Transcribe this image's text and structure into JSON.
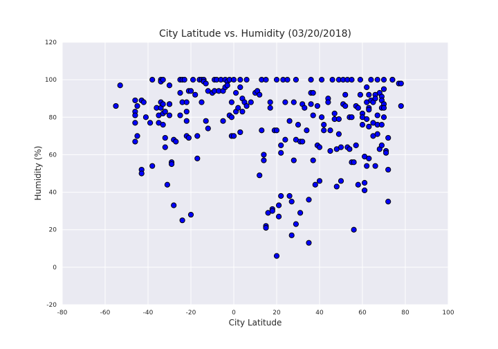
{
  "chart_data": {
    "type": "scatter",
    "title": "City Latitude vs. Humidity (03/20/2018)",
    "xlabel": "City Latitude",
    "ylabel": "Humidity (%)",
    "xlim": [
      -80,
      100
    ],
    "ylim": [
      -20,
      120
    ],
    "xticks": [
      -80,
      -60,
      -40,
      -20,
      0,
      20,
      40,
      60,
      80,
      100
    ],
    "yticks": [
      -20,
      0,
      20,
      40,
      60,
      80,
      100,
      120
    ],
    "grid": true,
    "colors": {
      "background": "#EAEAF2",
      "grid": "#FFFFFF",
      "marker_fill": "#0000FF",
      "marker_edge": "#000000"
    },
    "points": [
      [
        -55,
        86
      ],
      [
        -53,
        97
      ],
      [
        -46,
        89
      ],
      [
        -46,
        83
      ],
      [
        -46,
        81
      ],
      [
        -45,
        86
      ],
      [
        -46,
        77
      ],
      [
        -46,
        67
      ],
      [
        -45,
        70
      ],
      [
        -43,
        52
      ],
      [
        -43,
        50
      ],
      [
        -43,
        89
      ],
      [
        -42,
        88
      ],
      [
        -41,
        80
      ],
      [
        -39,
        77
      ],
      [
        -38,
        100
      ],
      [
        -38,
        54
      ],
      [
        -36,
        85
      ],
      [
        -35,
        81
      ],
      [
        -35,
        77
      ],
      [
        -34,
        100
      ],
      [
        -34,
        99
      ],
      [
        -34,
        88
      ],
      [
        -34,
        85
      ],
      [
        -33,
        100
      ],
      [
        -33,
        87
      ],
      [
        -33,
        82
      ],
      [
        -33,
        76
      ],
      [
        -32,
        83
      ],
      [
        -32,
        64
      ],
      [
        -32,
        69
      ],
      [
        -31,
        44
      ],
      [
        -30,
        97
      ],
      [
        -30,
        87
      ],
      [
        -30,
        87
      ],
      [
        -30,
        81
      ],
      [
        -29,
        56
      ],
      [
        -29,
        55
      ],
      [
        -28,
        33
      ],
      [
        -28,
        68
      ],
      [
        -27,
        67
      ],
      [
        -25,
        100
      ],
      [
        -25,
        93
      ],
      [
        -25,
        81
      ],
      [
        -24,
        100
      ],
      [
        -24,
        88
      ],
      [
        -24,
        25
      ],
      [
        -23,
        100
      ],
      [
        -22,
        88
      ],
      [
        -22,
        83
      ],
      [
        -22,
        78
      ],
      [
        -22,
        70
      ],
      [
        -21,
        94
      ],
      [
        -21,
        69
      ],
      [
        -20,
        94
      ],
      [
        -20,
        28
      ],
      [
        -19,
        100
      ],
      [
        -18,
        92
      ],
      [
        -17,
        70
      ],
      [
        -17,
        58
      ],
      [
        -16,
        100
      ],
      [
        -15,
        100
      ],
      [
        -15,
        88
      ],
      [
        -14,
        100
      ],
      [
        -14,
        99
      ],
      [
        -13,
        98
      ],
      [
        -13,
        78
      ],
      [
        -12,
        74
      ],
      [
        -12,
        94
      ],
      [
        -10,
        93
      ],
      [
        -9,
        100
      ],
      [
        -9,
        94
      ],
      [
        -8,
        100
      ],
      [
        -7,
        94
      ],
      [
        -6,
        100
      ],
      [
        -5,
        94
      ],
      [
        -5,
        78
      ],
      [
        -4,
        100
      ],
      [
        -4,
        96
      ],
      [
        -3,
        99
      ],
      [
        -3,
        97
      ],
      [
        -2,
        100
      ],
      [
        -2,
        81
      ],
      [
        -1,
        88
      ],
      [
        -1,
        80
      ],
      [
        -1,
        70
      ],
      [
        0,
        100
      ],
      [
        0,
        70
      ],
      [
        1,
        93
      ],
      [
        1,
        83
      ],
      [
        2,
        85
      ],
      [
        3,
        100
      ],
      [
        3,
        96
      ],
      [
        3,
        72
      ],
      [
        4,
        90
      ],
      [
        4,
        83
      ],
      [
        5,
        88
      ],
      [
        6,
        100
      ],
      [
        6,
        86
      ],
      [
        8,
        88
      ],
      [
        10,
        93
      ],
      [
        11,
        94
      ],
      [
        12,
        49
      ],
      [
        12,
        92
      ],
      [
        13,
        100
      ],
      [
        13,
        73
      ],
      [
        14,
        57
      ],
      [
        14,
        60
      ],
      [
        15,
        100
      ],
      [
        15,
        22
      ],
      [
        15,
        21
      ],
      [
        16,
        29
      ],
      [
        17,
        88
      ],
      [
        17,
        85
      ],
      [
        18,
        31
      ],
      [
        18,
        30
      ],
      [
        19,
        73
      ],
      [
        20,
        100
      ],
      [
        20,
        73
      ],
      [
        20,
        6
      ],
      [
        21,
        27
      ],
      [
        21,
        33
      ],
      [
        22,
        65
      ],
      [
        22,
        61
      ],
      [
        22,
        38
      ],
      [
        23,
        100
      ],
      [
        24,
        88
      ],
      [
        24,
        68
      ],
      [
        25,
        100
      ],
      [
        26,
        78
      ],
      [
        26,
        38
      ],
      [
        27,
        35
      ],
      [
        27,
        17
      ],
      [
        28,
        88
      ],
      [
        28,
        57
      ],
      [
        29,
        23
      ],
      [
        29,
        68
      ],
      [
        29,
        100
      ],
      [
        30,
        76
      ],
      [
        31,
        67
      ],
      [
        31,
        29
      ],
      [
        32,
        87
      ],
      [
        32,
        67
      ],
      [
        33,
        85
      ],
      [
        34,
        73
      ],
      [
        35,
        36
      ],
      [
        35,
        13
      ],
      [
        36,
        100
      ],
      [
        36,
        87
      ],
      [
        36,
        93
      ],
      [
        37,
        93
      ],
      [
        37,
        57
      ],
      [
        37,
        81
      ],
      [
        38,
        44
      ],
      [
        39,
        86
      ],
      [
        39,
        65
      ],
      [
        40,
        64
      ],
      [
        40,
        46
      ],
      [
        41,
        100
      ],
      [
        41,
        80
      ],
      [
        42,
        76
      ],
      [
        42,
        73
      ],
      [
        44,
        90
      ],
      [
        44,
        88
      ],
      [
        45,
        62
      ],
      [
        45,
        73
      ],
      [
        46,
        100
      ],
      [
        47,
        82
      ],
      [
        47,
        79
      ],
      [
        48,
        43
      ],
      [
        48,
        63
      ],
      [
        49,
        100
      ],
      [
        49,
        79
      ],
      [
        49,
        71
      ],
      [
        50,
        64
      ],
      [
        50,
        46
      ],
      [
        51,
        100
      ],
      [
        51,
        87
      ],
      [
        52,
        92
      ],
      [
        52,
        86
      ],
      [
        53,
        100
      ],
      [
        53,
        64
      ],
      [
        54,
        80
      ],
      [
        54,
        63
      ],
      [
        55,
        100
      ],
      [
        55,
        80
      ],
      [
        55,
        56
      ],
      [
        56,
        20
      ],
      [
        56,
        56
      ],
      [
        57,
        86
      ],
      [
        57,
        65
      ],
      [
        58,
        85
      ],
      [
        58,
        44
      ],
      [
        59,
        100
      ],
      [
        59,
        92
      ],
      [
        60,
        82
      ],
      [
        60,
        80
      ],
      [
        60,
        76
      ],
      [
        61,
        59
      ],
      [
        61,
        45
      ],
      [
        61,
        41
      ],
      [
        62,
        96
      ],
      [
        62,
        88
      ],
      [
        62,
        79
      ],
      [
        62,
        54
      ],
      [
        63,
        92
      ],
      [
        63,
        85
      ],
      [
        63,
        84
      ],
      [
        63,
        75
      ],
      [
        63,
        58
      ],
      [
        64,
        100
      ],
      [
        64,
        89
      ],
      [
        65,
        88
      ],
      [
        65,
        77
      ],
      [
        65,
        70
      ],
      [
        66,
        92
      ],
      [
        66,
        90
      ],
      [
        66,
        54
      ],
      [
        67,
        100
      ],
      [
        67,
        81
      ],
      [
        67,
        76
      ],
      [
        67,
        71
      ],
      [
        68,
        93
      ],
      [
        68,
        63
      ],
      [
        69,
        91
      ],
      [
        69,
        89
      ],
      [
        69,
        85
      ],
      [
        69,
        76
      ],
      [
        69,
        65
      ],
      [
        70,
        100
      ],
      [
        70,
        95
      ],
      [
        70,
        87
      ],
      [
        70,
        85
      ],
      [
        70,
        80
      ],
      [
        71,
        62
      ],
      [
        71,
        61
      ],
      [
        72,
        69
      ],
      [
        72,
        52
      ],
      [
        72,
        35
      ],
      [
        74,
        100
      ],
      [
        77,
        98
      ],
      [
        78,
        98
      ],
      [
        78,
        86
      ],
      [
        74,
        100
      ]
    ]
  }
}
